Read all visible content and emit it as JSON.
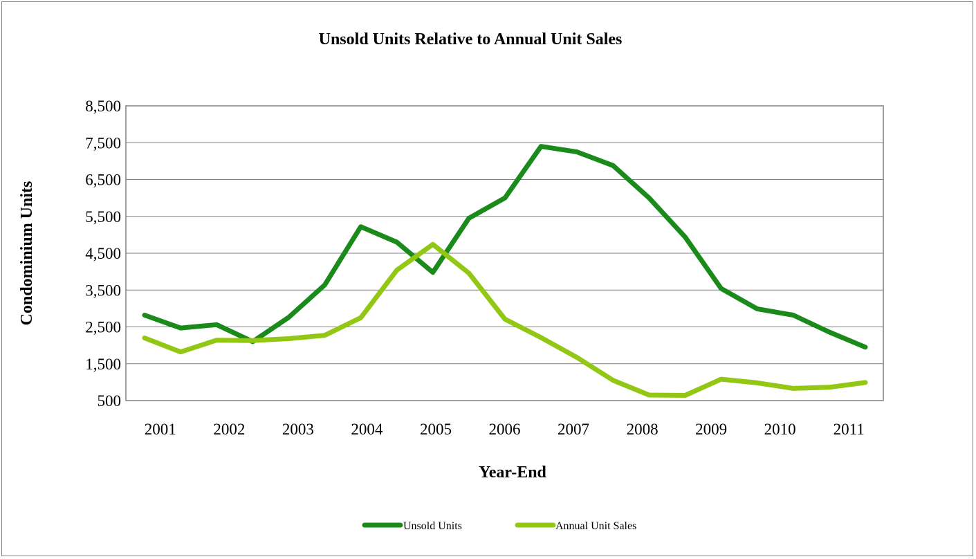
{
  "chart_data": {
    "type": "line",
    "title": "Unsold Units Relative to Annual Unit Sales",
    "xlabel": "Year-End",
    "ylabel": "Condominium Units",
    "ylim": [
      500,
      8500
    ],
    "y_ticks": [
      "8,500",
      "7,500",
      "6,500",
      "5,500",
      "4,500",
      "3,500",
      "2,500",
      "1,500",
      "500"
    ],
    "y_tick_values": [
      8500,
      7500,
      6500,
      5500,
      4500,
      3500,
      2500,
      1500,
      500
    ],
    "x_tick_labels": [
      "2001",
      "2002",
      "2003",
      "2004",
      "2005",
      "2006",
      "2007",
      "2008",
      "2009",
      "2010",
      "2011"
    ],
    "grid": true,
    "legend_position": "bottom",
    "series": [
      {
        "name": "Unsold Units",
        "color": "#1a8a1a",
        "values": [
          2820,
          2470,
          2560,
          2100,
          2760,
          3640,
          5220,
          4800,
          3980,
          5450,
          6000,
          7400,
          7250,
          6880,
          6000,
          4940,
          3540,
          2990,
          2820,
          2360,
          1950
        ]
      },
      {
        "name": "Annual Unit Sales",
        "color": "#92c814",
        "values": [
          2200,
          1820,
          2140,
          2130,
          2180,
          2270,
          2750,
          4040,
          4740,
          3960,
          2710,
          2210,
          1670,
          1050,
          650,
          640,
          1080,
          980,
          830,
          860,
          990
        ]
      }
    ]
  }
}
